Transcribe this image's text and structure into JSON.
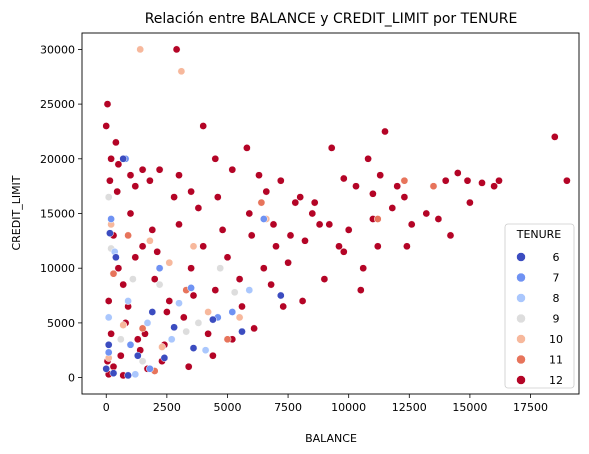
{
  "chart_data": {
    "type": "scatter",
    "title": "Relación entre BALANCE y CREDIT_LIMIT por TENURE",
    "xlabel": "BALANCE",
    "ylabel": "CREDIT_LIMIT",
    "xlim": [
      -1000,
      19500
    ],
    "ylim": [
      -1500,
      31500
    ],
    "xticks": [
      0,
      2500,
      5000,
      7500,
      10000,
      12500,
      15000,
      17500
    ],
    "xtick_labels": [
      "0",
      "2500",
      "5000",
      "7500",
      "10000",
      "12500",
      "15000",
      "17500"
    ],
    "yticks": [
      0,
      5000,
      10000,
      15000,
      20000,
      25000,
      30000
    ],
    "ytick_labels": [
      "0",
      "5000",
      "10000",
      "15000",
      "20000",
      "25000",
      "30000"
    ],
    "grid": false,
    "legend": {
      "title": "TENURE",
      "placement": "lower-right",
      "entries": [
        {
          "label": "6",
          "color": "#3b4cc0"
        },
        {
          "label": "7",
          "color": "#6f92f3"
        },
        {
          "label": "8",
          "color": "#aac7fd"
        },
        {
          "label": "9",
          "color": "#dddddd"
        },
        {
          "label": "10",
          "color": "#f7b89c"
        },
        {
          "label": "11",
          "color": "#e7745b"
        },
        {
          "label": "12",
          "color": "#b40426"
        }
      ]
    },
    "series": [
      {
        "name": "12",
        "color": "#b40426",
        "points": [
          [
            50,
            25000
          ],
          [
            0,
            23000
          ],
          [
            400,
            21500
          ],
          [
            200,
            20000
          ],
          [
            500,
            19500
          ],
          [
            150,
            18000
          ],
          [
            1000,
            18500
          ],
          [
            1500,
            19000
          ],
          [
            1200,
            17500
          ],
          [
            2200,
            19000
          ],
          [
            1800,
            18000
          ],
          [
            3000,
            18500
          ],
          [
            3500,
            17000
          ],
          [
            4000,
            23000
          ],
          [
            4500,
            20000
          ],
          [
            5200,
            19000
          ],
          [
            5800,
            21000
          ],
          [
            6300,
            18500
          ],
          [
            7200,
            18000
          ],
          [
            8000,
            16500
          ],
          [
            9300,
            21000
          ],
          [
            9800,
            18200
          ],
          [
            10300,
            17500
          ],
          [
            10800,
            20000
          ],
          [
            11300,
            18500
          ],
          [
            11500,
            22500
          ],
          [
            11000,
            16800
          ],
          [
            12000,
            17500
          ],
          [
            12300,
            16500
          ],
          [
            12600,
            14000
          ],
          [
            13200,
            15000
          ],
          [
            13700,
            14500
          ],
          [
            14000,
            18000
          ],
          [
            14500,
            18700
          ],
          [
            14900,
            18000
          ],
          [
            15500,
            17800
          ],
          [
            16000,
            17500
          ],
          [
            16200,
            18000
          ],
          [
            18500,
            22000
          ],
          [
            19000,
            18000
          ],
          [
            15000,
            16000
          ],
          [
            14200,
            13000
          ],
          [
            12400,
            12000
          ],
          [
            10500,
            8000
          ],
          [
            11200,
            12000
          ],
          [
            9800,
            11500
          ],
          [
            9200,
            14000
          ],
          [
            8500,
            15000
          ],
          [
            7800,
            16000
          ],
          [
            7000,
            12000
          ],
          [
            6500,
            10000
          ],
          [
            6000,
            13000
          ],
          [
            5500,
            9000
          ],
          [
            5000,
            11000
          ],
          [
            4500,
            8000
          ],
          [
            4000,
            12000
          ],
          [
            3500,
            10000
          ],
          [
            3000,
            14000
          ],
          [
            2500,
            6000
          ],
          [
            2000,
            9000
          ],
          [
            1500,
            12000
          ],
          [
            1000,
            15000
          ],
          [
            500,
            10000
          ],
          [
            300,
            13000
          ],
          [
            100,
            7000
          ],
          [
            800,
            5000
          ],
          [
            1600,
            4000
          ],
          [
            2400,
            3000
          ],
          [
            3200,
            5500
          ],
          [
            4200,
            4000
          ],
          [
            5600,
            6500
          ],
          [
            6800,
            8500
          ],
          [
            7500,
            10500
          ],
          [
            8200,
            12500
          ],
          [
            9000,
            9000
          ],
          [
            10000,
            13500
          ],
          [
            11000,
            14500
          ],
          [
            11800,
            15500
          ],
          [
            3800,
            15500
          ],
          [
            2800,
            16500
          ],
          [
            1900,
            13500
          ],
          [
            1200,
            11000
          ],
          [
            700,
            8500
          ],
          [
            200,
            4000
          ],
          [
            50,
            1500
          ],
          [
            600,
            2000
          ],
          [
            1400,
            2500
          ],
          [
            2600,
            7000
          ],
          [
            3600,
            7500
          ],
          [
            4800,
            13500
          ],
          [
            5900,
            15000
          ],
          [
            6900,
            14000
          ],
          [
            8800,
            14000
          ],
          [
            9600,
            12000
          ],
          [
            10600,
            10000
          ],
          [
            7300,
            6500
          ],
          [
            5200,
            3500
          ],
          [
            4400,
            2000
          ],
          [
            2300,
            1500
          ],
          [
            3400,
            1000
          ],
          [
            6100,
            4500
          ],
          [
            8100,
            7000
          ],
          [
            2900,
            30000
          ],
          [
            1300,
            3500
          ],
          [
            900,
            6500
          ],
          [
            450,
            17000
          ],
          [
            2100,
            11500
          ],
          [
            4600,
            16500
          ],
          [
            6600,
            17000
          ],
          [
            7600,
            13000
          ],
          [
            8600,
            16000
          ],
          [
            300,
            1000
          ],
          [
            100,
            300
          ],
          [
            700,
            200
          ],
          [
            1700,
            800
          ]
        ]
      },
      {
        "name": "11",
        "color": "#e7745b",
        "points": [
          [
            6400,
            16000
          ],
          [
            12300,
            18000
          ],
          [
            13500,
            17500
          ],
          [
            11200,
            14500
          ],
          [
            300,
            9500
          ],
          [
            1500,
            4500
          ],
          [
            3300,
            8000
          ],
          [
            900,
            13000
          ],
          [
            5000,
            3500
          ],
          [
            2000,
            600
          ]
        ]
      },
      {
        "name": "10",
        "color": "#f7b89c",
        "points": [
          [
            1400,
            30000
          ],
          [
            3100,
            28000
          ],
          [
            200,
            14000
          ],
          [
            2600,
            10500
          ],
          [
            4200,
            6000
          ],
          [
            700,
            4800
          ],
          [
            1800,
            12500
          ],
          [
            6600,
            14500
          ],
          [
            3600,
            12000
          ],
          [
            100,
            1800
          ],
          [
            5500,
            5500
          ],
          [
            2300,
            2800
          ]
        ]
      },
      {
        "name": "9",
        "color": "#dddddd",
        "points": [
          [
            100,
            16500
          ],
          [
            1100,
            9000
          ],
          [
            3800,
            5000
          ],
          [
            600,
            3500
          ],
          [
            2200,
            8500
          ],
          [
            5300,
            7800
          ],
          [
            1500,
            1500
          ],
          [
            200,
            11800
          ],
          [
            3300,
            4200
          ],
          [
            4700,
            10000
          ]
        ]
      },
      {
        "name": "8",
        "color": "#aac7fd",
        "points": [
          [
            350,
            11500
          ],
          [
            1700,
            5000
          ],
          [
            4100,
            2500
          ],
          [
            900,
            7000
          ],
          [
            2700,
            3500
          ],
          [
            5900,
            8000
          ],
          [
            100,
            5500
          ],
          [
            3000,
            6800
          ],
          [
            1200,
            300
          ]
        ]
      },
      {
        "name": "7",
        "color": "#6f92f3",
        "points": [
          [
            800,
            20000
          ],
          [
            200,
            14500
          ],
          [
            2200,
            10000
          ],
          [
            4600,
            5500
          ],
          [
            1000,
            3000
          ],
          [
            6500,
            14500
          ],
          [
            3500,
            8200
          ],
          [
            100,
            2300
          ],
          [
            1800,
            800
          ],
          [
            5200,
            6000
          ]
        ]
      },
      {
        "name": "6",
        "color": "#3b4cc0",
        "points": [
          [
            700,
            20000
          ],
          [
            150,
            13200
          ],
          [
            400,
            11000
          ],
          [
            2800,
            4600
          ],
          [
            1300,
            2000
          ],
          [
            0,
            800
          ],
          [
            300,
            400
          ],
          [
            5600,
            4200
          ],
          [
            7200,
            7500
          ],
          [
            100,
            3000
          ],
          [
            1900,
            6000
          ],
          [
            900,
            200
          ],
          [
            3600,
            2700
          ],
          [
            4400,
            5300
          ],
          [
            2400,
            1800
          ]
        ]
      }
    ]
  }
}
